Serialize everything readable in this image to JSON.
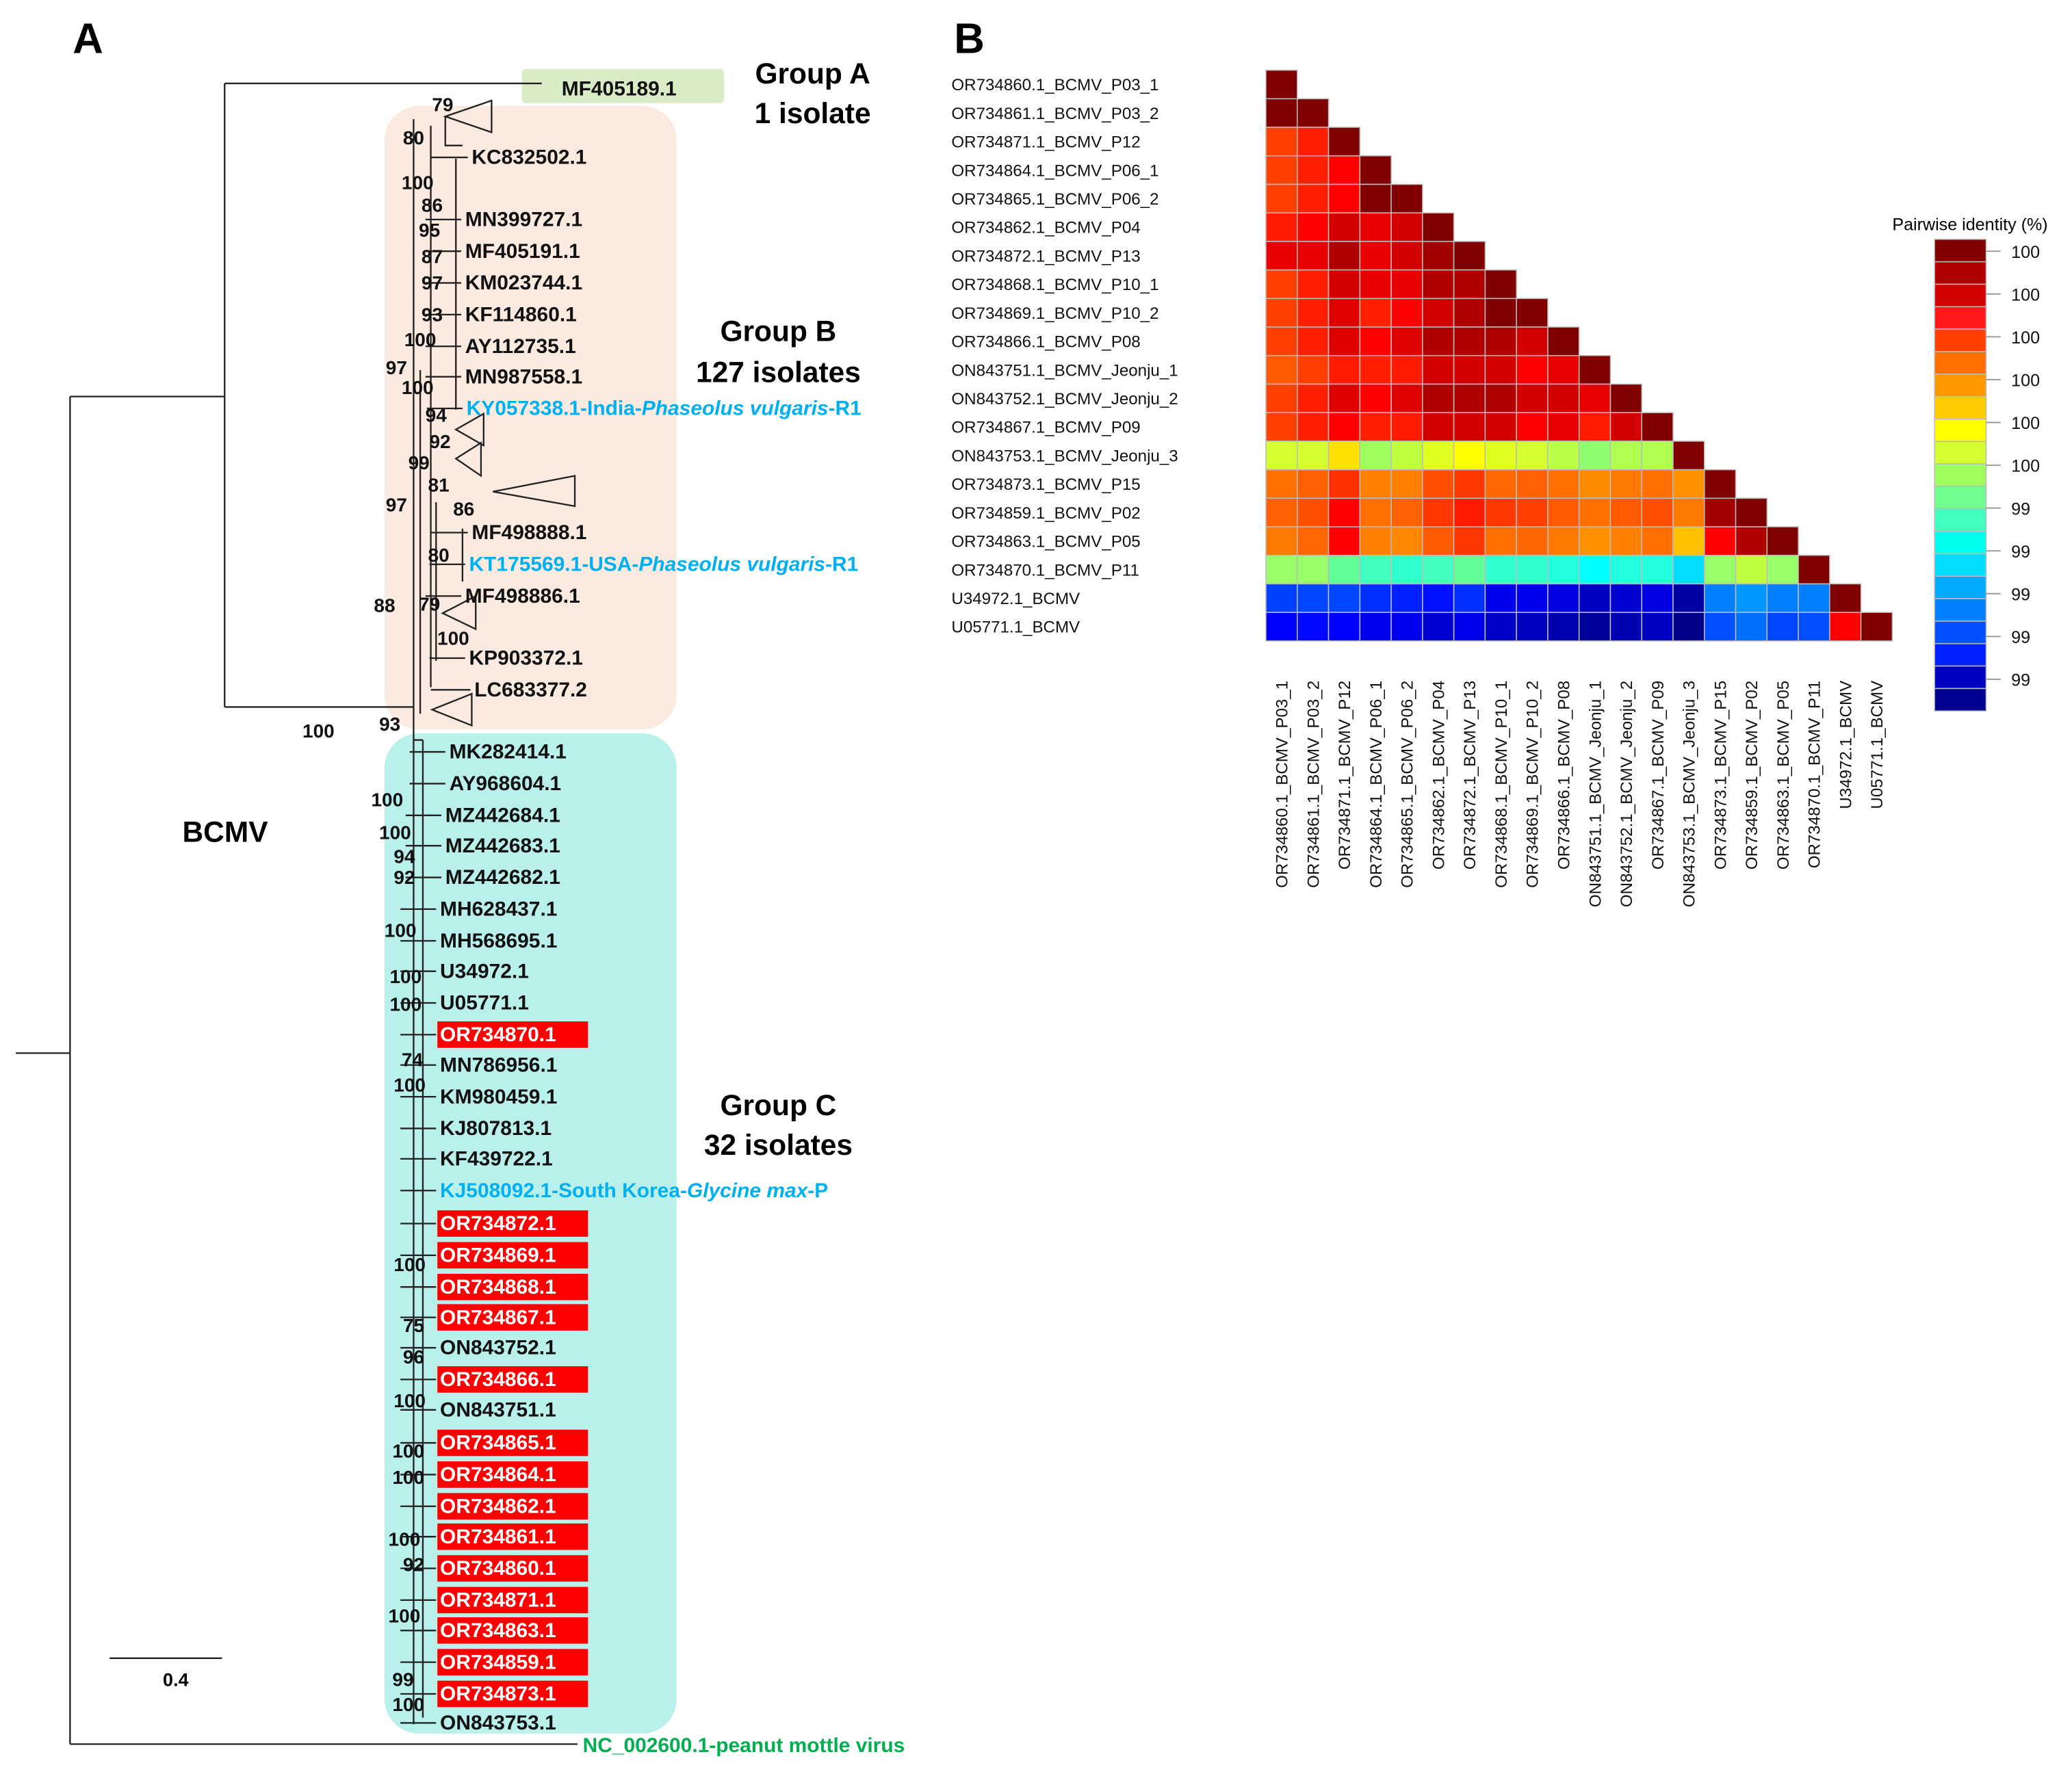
{
  "panel_a": {
    "label": "A",
    "virus_label": "BCMV",
    "scale_bar": "0.4",
    "groups": [
      {
        "title": "Group A",
        "count": "1 isolate",
        "color": "#d9ecc6"
      },
      {
        "title": "Group B",
        "count": "127 isolates",
        "color": "#fbeadf"
      },
      {
        "title": "Group C",
        "count": "32 isolates",
        "color": "#b9f0ec"
      }
    ],
    "leaves": [
      {
        "label": "MF405189.1",
        "style": "plain"
      },
      {
        "label": "KC832502.1",
        "style": "plain"
      },
      {
        "label": "MN399727.1",
        "style": "plain"
      },
      {
        "label": "MF405191.1",
        "style": "plain"
      },
      {
        "label": "KM023744.1",
        "style": "plain"
      },
      {
        "label": "KF114860.1",
        "style": "plain"
      },
      {
        "label": "AY112735.1",
        "style": "plain"
      },
      {
        "label": "MN987558.1",
        "style": "plain"
      },
      {
        "label": "KY057338.1-India-",
        "italic": "Phaseolus vulgaris",
        "suffix": "-R1",
        "style": "reference"
      },
      {
        "label": "MF498888.1",
        "style": "plain"
      },
      {
        "label": "KT175569.1-USA-",
        "italic": "Phaseolus vulgaris",
        "suffix": "-R1",
        "style": "reference"
      },
      {
        "label": "MF498886.1",
        "style": "plain"
      },
      {
        "label": "KP903372.1",
        "style": "plain"
      },
      {
        "label": "LC683377.2",
        "style": "plain"
      },
      {
        "label": "MK282414.1",
        "style": "plain"
      },
      {
        "label": "AY968604.1",
        "style": "plain"
      },
      {
        "label": "MZ442684.1",
        "style": "plain"
      },
      {
        "label": "MZ442683.1",
        "style": "plain"
      },
      {
        "label": "MZ442682.1",
        "style": "plain"
      },
      {
        "label": "MH628437.1",
        "style": "plain"
      },
      {
        "label": "MH568695.1",
        "style": "plain"
      },
      {
        "label": "U34972.1",
        "style": "plain"
      },
      {
        "label": "U05771.1",
        "style": "plain"
      },
      {
        "label": "OR734870.1",
        "style": "highlight"
      },
      {
        "label": "MN786956.1",
        "style": "plain"
      },
      {
        "label": "KM980459.1",
        "style": "plain"
      },
      {
        "label": "KJ807813.1",
        "style": "plain"
      },
      {
        "label": "KF439722.1",
        "style": "plain"
      },
      {
        "label": "KJ508092.1-South Korea-",
        "italic": "Glycine max",
        "suffix": "-P",
        "style": "reference"
      },
      {
        "label": "OR734872.1",
        "style": "highlight"
      },
      {
        "label": "OR734869.1",
        "style": "highlight"
      },
      {
        "label": "OR734868.1",
        "style": "highlight"
      },
      {
        "label": "OR734867.1",
        "style": "highlight"
      },
      {
        "label": "ON843752.1",
        "style": "plain"
      },
      {
        "label": "OR734866.1",
        "style": "highlight"
      },
      {
        "label": "ON843751.1",
        "style": "plain"
      },
      {
        "label": "OR734865.1",
        "style": "highlight"
      },
      {
        "label": "OR734864.1",
        "style": "highlight"
      },
      {
        "label": "OR734862.1",
        "style": "highlight"
      },
      {
        "label": "OR734861.1",
        "style": "highlight"
      },
      {
        "label": "OR734860.1",
        "style": "highlight"
      },
      {
        "label": "OR734871.1",
        "style": "highlight"
      },
      {
        "label": "OR734863.1",
        "style": "highlight"
      },
      {
        "label": "OR734859.1",
        "style": "highlight"
      },
      {
        "label": "OR734873.1",
        "style": "highlight"
      },
      {
        "label": "ON843753.1",
        "style": "plain"
      },
      {
        "label": "NC_002600.1-peanut mottle virus",
        "style": "outgroup"
      }
    ],
    "bootstrap": [
      "79",
      "80",
      "100",
      "86",
      "95",
      "87",
      "97",
      "93",
      "100",
      "97",
      "100",
      "94",
      "92",
      "99",
      "81",
      "97",
      "86",
      "80",
      "88",
      "79",
      "100",
      "100",
      "93",
      "100",
      "100",
      "94",
      "92",
      "100",
      "100",
      "100",
      "74",
      "100",
      "100",
      "75",
      "96",
      "100",
      "100",
      "100",
      "100",
      "92",
      "100",
      "99",
      "100"
    ],
    "colors": {
      "reference": "#00b0f0",
      "highlight": "#ff0000",
      "outgroup": "#00b050"
    }
  },
  "panel_b": {
    "label": "B",
    "legend_title": "Pairwise identity (%)",
    "legend_ticks": [
      "100",
      "100",
      "100",
      "100",
      "100",
      "100",
      "99",
      "99",
      "99",
      "99",
      "99"
    ],
    "legend_colors": [
      "#800000",
      "#b00000",
      "#d40000",
      "#ff1a1a",
      "#ff4000",
      "#ff7000",
      "#ff9900",
      "#ffcc00",
      "#ffff00",
      "#d4ff30",
      "#a0ff60",
      "#70ff90",
      "#40ffc0",
      "#00ffee",
      "#00ddff",
      "#00aaff",
      "#0080ff",
      "#0050ff",
      "#0020ff",
      "#0000c0",
      "#000090"
    ],
    "sequences": [
      "OR734860.1_BCMV_P03_1",
      "OR734861.1_BCMV_P03_2",
      "OR734871.1_BCMV_P12",
      "OR734864.1_BCMV_P06_1",
      "OR734865.1_BCMV_P06_2",
      "OR734862.1_BCMV_P04",
      "OR734872.1_BCMV_P13",
      "OR734868.1_BCMV_P10_1",
      "OR734869.1_BCMV_P10_2",
      "OR734866.1_BCMV_P08",
      "ON843751.1_BCMV_Jeonju_1",
      "ON843752.1_BCMV_Jeonju_2",
      "OR734867.1_BCMV_P09",
      "ON843753.1_BCMV_Jeonju_3",
      "OR734873.1_BCMV_P15",
      "OR734859.1_BCMV_P02",
      "OR734863.1_BCMV_P05",
      "OR734870.1_BCMV_P11",
      "U34972.1_BCMV",
      "U05771.1_BCMV"
    ],
    "matrix_colors": [
      [
        "#800000"
      ],
      [
        "#800000",
        "#800000"
      ],
      [
        "#ff4000",
        "#ff2000",
        "#800000"
      ],
      [
        "#ff4000",
        "#ff2000",
        "#ff0000",
        "#800000"
      ],
      [
        "#ff4000",
        "#ff2000",
        "#ff0000",
        "#800000",
        "#800000"
      ],
      [
        "#ff1a00",
        "#ff0000",
        "#d40000",
        "#e80000",
        "#d40000",
        "#800000"
      ],
      [
        "#e80000",
        "#e80000",
        "#b00000",
        "#e80000",
        "#d40000",
        "#a00000",
        "#800000"
      ],
      [
        "#ff4000",
        "#ff2000",
        "#d40000",
        "#e80000",
        "#e80000",
        "#b00000",
        "#b00000",
        "#800000"
      ],
      [
        "#ff4000",
        "#ff2000",
        "#e00000",
        "#ff2000",
        "#ff0000",
        "#d40000",
        "#b00000",
        "#800000",
        "#800000"
      ],
      [
        "#ff4000",
        "#ff2000",
        "#e00000",
        "#ff0000",
        "#e00000",
        "#b00000",
        "#b00000",
        "#b00000",
        "#d40000",
        "#800000"
      ],
      [
        "#ff5a00",
        "#ff4000",
        "#ff1a00",
        "#ff2000",
        "#ff1a00",
        "#d40000",
        "#d40000",
        "#d40000",
        "#ff0000",
        "#e80000",
        "#800000"
      ],
      [
        "#ff4000",
        "#ff2000",
        "#e00000",
        "#ff0000",
        "#e00000",
        "#b00000",
        "#b00000",
        "#b00000",
        "#d40000",
        "#d40000",
        "#e80000",
        "#800000"
      ],
      [
        "#ff4000",
        "#ff2000",
        "#ff0000",
        "#ff2000",
        "#ff1a00",
        "#d40000",
        "#d40000",
        "#d40000",
        "#ff0000",
        "#e80000",
        "#ff1a00",
        "#d40000",
        "#800000"
      ],
      [
        "#d4ff30",
        "#d4ff30",
        "#ffe000",
        "#a0ff60",
        "#c0ff40",
        "#e0ff20",
        "#ffff00",
        "#e0ff20",
        "#d4ff30",
        "#b8ff48",
        "#90ff70",
        "#b0ff50",
        "#b0ff50",
        "#800000"
      ],
      [
        "#ff7000",
        "#ff6000",
        "#ff3000",
        "#ff8000",
        "#ff8000",
        "#ff5000",
        "#ff3800",
        "#ff6800",
        "#ff6000",
        "#ff7000",
        "#ff8c00",
        "#ff7800",
        "#ff7000",
        "#ff9000",
        "#800000"
      ],
      [
        "#ff6000",
        "#ff5000",
        "#ff0000",
        "#ff7000",
        "#ff6000",
        "#ff3800",
        "#ff1a00",
        "#ff3800",
        "#ff4000",
        "#ff5a00",
        "#ff7000",
        "#ff5a00",
        "#ff5000",
        "#ff7800",
        "#a00000",
        "#800000"
      ],
      [
        "#ff7800",
        "#ff6800",
        "#ff0000",
        "#ff8000",
        "#ff8800",
        "#ff5a00",
        "#ff3800",
        "#ff7000",
        "#ff6800",
        "#ff7800",
        "#ff9000",
        "#ff8000",
        "#ff7000",
        "#ffc000",
        "#ff0000",
        "#b00000",
        "#800000"
      ],
      [
        "#98ff68",
        "#98ff68",
        "#60ff98",
        "#40ffc0",
        "#30ffd0",
        "#40ffc0",
        "#60ff98",
        "#30ffd0",
        "#30ffd0",
        "#20ffe0",
        "#00ffff",
        "#20ffe0",
        "#20ffe0",
        "#00ddff",
        "#98ff68",
        "#c0ff40",
        "#98ff68",
        "#800000"
      ],
      [
        "#0040ff",
        "#0048ff",
        "#0048ff",
        "#0030ff",
        "#0020ff",
        "#0010ff",
        "#0030ff",
        "#0000f0",
        "#0000f0",
        "#0000e0",
        "#0000c0",
        "#0000d0",
        "#0000e0",
        "#0000a0",
        "#0080ff",
        "#0098ff",
        "#0080ff",
        "#0080ff",
        "#800000"
      ],
      [
        "#0000ff",
        "#0008ff",
        "#0000ff",
        "#0000f0",
        "#0000f0",
        "#0000d0",
        "#0000f0",
        "#0000c8",
        "#0000c0",
        "#0000b0",
        "#00009a",
        "#0000b0",
        "#0000c0",
        "#000088",
        "#0050ff",
        "#0070ff",
        "#0048ff",
        "#0050ff",
        "#ff0000",
        "#800000"
      ]
    ]
  }
}
